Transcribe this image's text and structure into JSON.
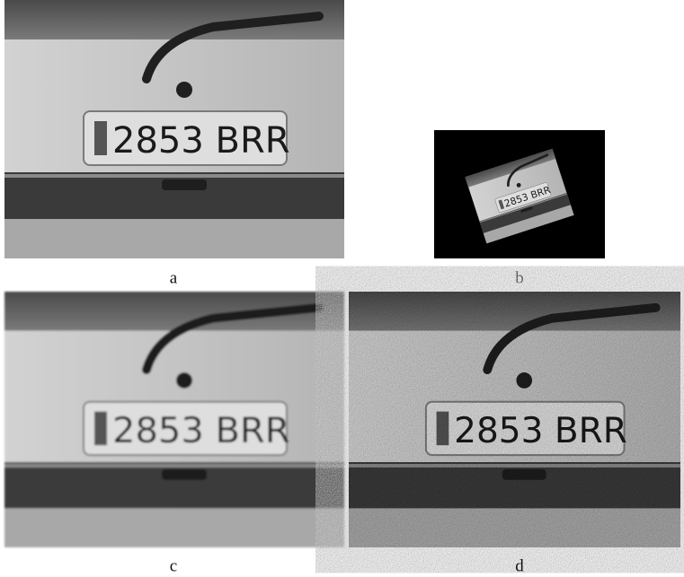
{
  "panels": [
    {
      "label": "a",
      "plate": "2853 BRR"
    },
    {
      "label": "b",
      "plate": "2853 BRR"
    },
    {
      "label": "c",
      "plate": "2853 BRR"
    },
    {
      "label": "d",
      "plate": "2853 BRR"
    }
  ]
}
